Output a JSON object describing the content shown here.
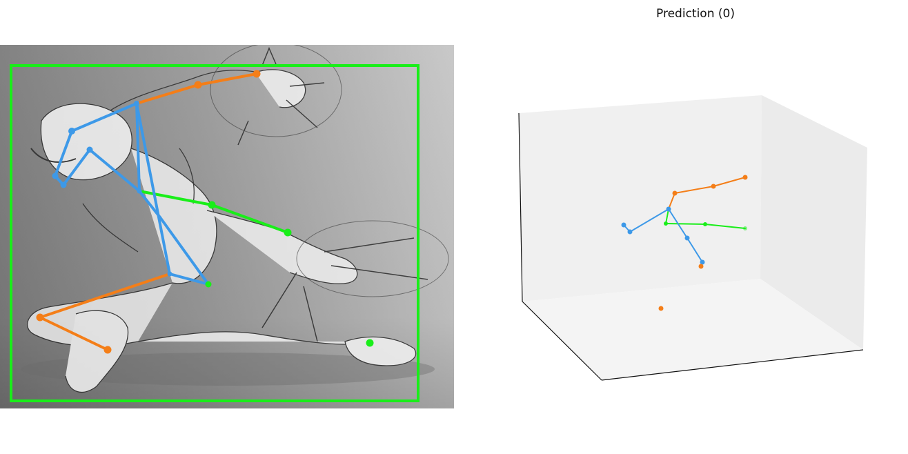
{
  "panels": {
    "right_title": "Prediction (0)"
  },
  "colors": {
    "left_limbs": "#3d99e8",
    "right_limbs": "#f47e18",
    "center": "#19ee19",
    "bbox": "#19ee19",
    "pane": "#f2f2f2",
    "pane_side": "#ececec",
    "axis": "#111111"
  }
}
